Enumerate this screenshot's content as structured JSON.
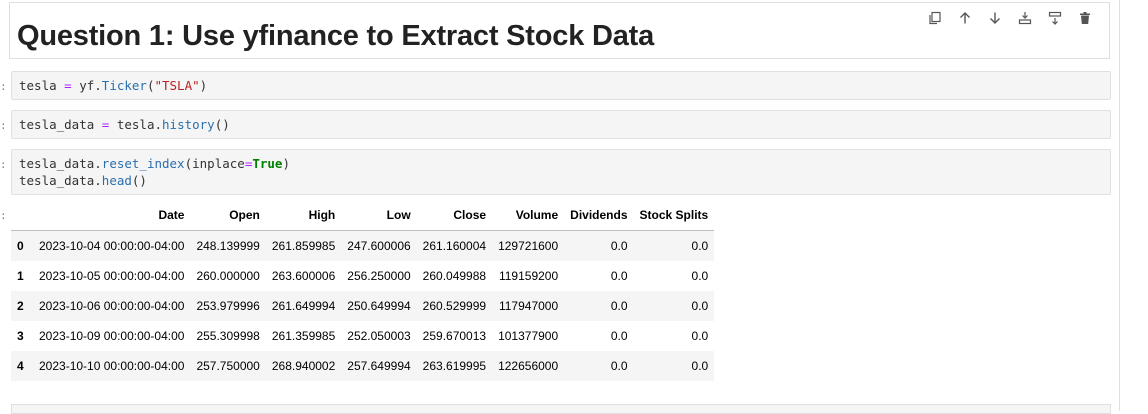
{
  "markdown": {
    "heading": "Question 1: Use yfinance to Extract Stock Data"
  },
  "toolbar": {
    "buttons": [
      {
        "name": "duplicate-cell-button",
        "icon": "copy-icon"
      },
      {
        "name": "move-up-button",
        "icon": "arrow-up-icon"
      },
      {
        "name": "move-down-button",
        "icon": "arrow-down-icon"
      },
      {
        "name": "insert-above-button",
        "icon": "insert-above-icon"
      },
      {
        "name": "insert-below-button",
        "icon": "insert-below-icon"
      },
      {
        "name": "delete-cell-button",
        "icon": "trash-icon"
      }
    ]
  },
  "prompt_marker": ":",
  "cells": [
    {
      "line1": {
        "a": "tesla ",
        "op": "=",
        "b": " yf.",
        "attr": "Ticker",
        "c": "(",
        "str": "\"TSLA\"",
        "d": ")"
      }
    },
    {
      "line1": {
        "a": "tesla_data ",
        "op": "=",
        "b": " tesla.",
        "attr": "history",
        "c": "()"
      }
    },
    {
      "line1": {
        "a": "tesla_data.",
        "attr": "reset_index",
        "b": "(inplace",
        "op": "=",
        "kw": "True",
        "c": ")"
      },
      "line2": {
        "a": "tesla_data.",
        "attr": "head",
        "b": "()"
      }
    }
  ],
  "table": {
    "columns": [
      "",
      "Date",
      "Open",
      "High",
      "Low",
      "Close",
      "Volume",
      "Dividends",
      "Stock Splits"
    ],
    "rows": [
      {
        "index": "0",
        "date": "2023-10-04 00:00:00-04:00",
        "open": "248.139999",
        "high": "261.859985",
        "low": "247.600006",
        "close": "261.160004",
        "volume": "129721600",
        "dividends": "0.0",
        "splits": "0.0"
      },
      {
        "index": "1",
        "date": "2023-10-05 00:00:00-04:00",
        "open": "260.000000",
        "high": "263.600006",
        "low": "256.250000",
        "close": "260.049988",
        "volume": "119159200",
        "dividends": "0.0",
        "splits": "0.0"
      },
      {
        "index": "2",
        "date": "2023-10-06 00:00:00-04:00",
        "open": "253.979996",
        "high": "261.649994",
        "low": "250.649994",
        "close": "260.529999",
        "volume": "117947000",
        "dividends": "0.0",
        "splits": "0.0"
      },
      {
        "index": "3",
        "date": "2023-10-09 00:00:00-04:00",
        "open": "255.309998",
        "high": "261.359985",
        "low": "252.050003",
        "close": "259.670013",
        "volume": "101377900",
        "dividends": "0.0",
        "splits": "0.0"
      },
      {
        "index": "4",
        "date": "2023-10-10 00:00:00-04:00",
        "open": "257.750000",
        "high": "268.940002",
        "low": "257.649994",
        "close": "263.619995",
        "volume": "122656000",
        "dividends": "0.0",
        "splits": "0.0"
      }
    ]
  }
}
